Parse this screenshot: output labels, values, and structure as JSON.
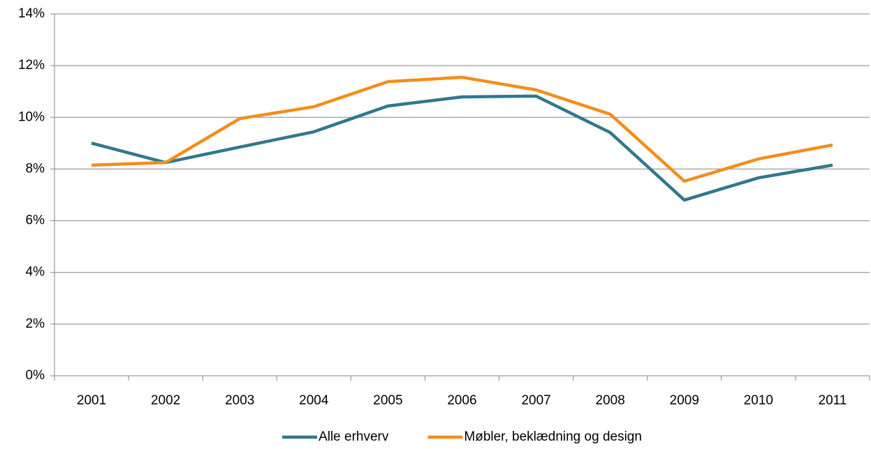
{
  "chart_data": {
    "type": "line",
    "categories": [
      "2001",
      "2002",
      "2003",
      "2004",
      "2005",
      "2006",
      "2007",
      "2008",
      "2009",
      "2010",
      "2011"
    ],
    "series": [
      {
        "name": "Alle erhverv",
        "color": "#31788c",
        "values": [
          9.0,
          8.25,
          8.85,
          9.44,
          10.44,
          10.79,
          10.82,
          9.41,
          6.8,
          7.66,
          8.15
        ]
      },
      {
        "name": "Møbler, beklædning og design",
        "color": "#f28e1c",
        "values": [
          8.15,
          8.25,
          9.95,
          10.41,
          11.38,
          11.55,
          11.06,
          10.12,
          7.53,
          8.39,
          8.93
        ]
      }
    ],
    "ylim": [
      0,
      14
    ],
    "yticks": [
      {
        "value": 0,
        "label": "0%"
      },
      {
        "value": 2,
        "label": "2%"
      },
      {
        "value": 4,
        "label": "4%"
      },
      {
        "value": 6,
        "label": "6%"
      },
      {
        "value": 8,
        "label": "8%"
      },
      {
        "value": 10,
        "label": "10%"
      },
      {
        "value": 12,
        "label": "12%"
      },
      {
        "value": 14,
        "label": "14%"
      }
    ],
    "grid": true,
    "legend": "bottom"
  }
}
